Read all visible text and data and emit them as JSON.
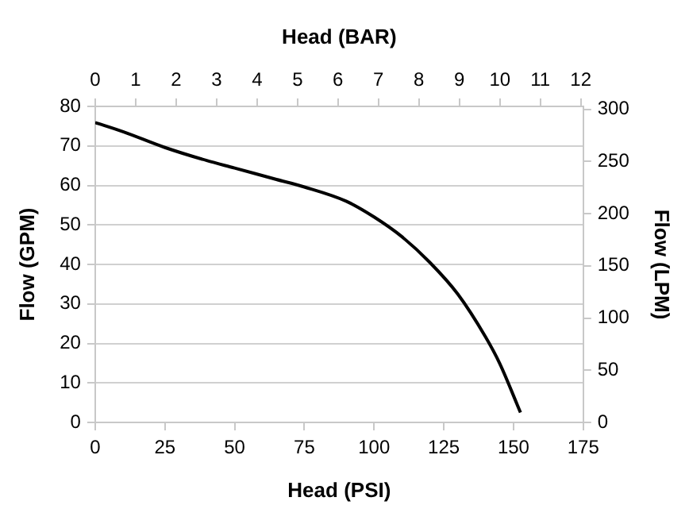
{
  "chart_data": {
    "type": "line",
    "xlabel": "Head (PSI)",
    "ylabel": "Flow (GPM)",
    "y2label": "Flow (LPM)",
    "x2label": "Head (BAR)",
    "x": [
      0,
      10,
      25,
      40,
      50,
      65,
      75,
      90,
      100,
      110,
      120,
      130,
      140,
      145,
      152.5
    ],
    "series": [
      {
        "color": "#000000",
        "values": [
          75.9,
          73.6,
          69.6,
          66.3,
          64.4,
          61.5,
          59.6,
          56,
          52,
          47,
          40.5,
          32.5,
          21.6,
          15,
          2.5
        ]
      }
    ],
    "xlim": [
      0,
      175
    ],
    "xticks": [
      0,
      25,
      50,
      75,
      100,
      125,
      150,
      175
    ],
    "ylim": [
      0,
      80
    ],
    "yticks": [
      0,
      10,
      20,
      30,
      40,
      50,
      60,
      70,
      80
    ],
    "y2lim": [
      0,
      302.8
    ],
    "y2ticks": [
      0,
      50,
      100,
      150,
      200,
      250,
      300
    ],
    "x2lim": [
      0,
      12.06
    ],
    "x2ticks": [
      0,
      1,
      2,
      3,
      4,
      5,
      6,
      7,
      8,
      9,
      10,
      11,
      12
    ],
    "grid": "y",
    "legend": false,
    "marker": "none",
    "line_style": "solid"
  }
}
